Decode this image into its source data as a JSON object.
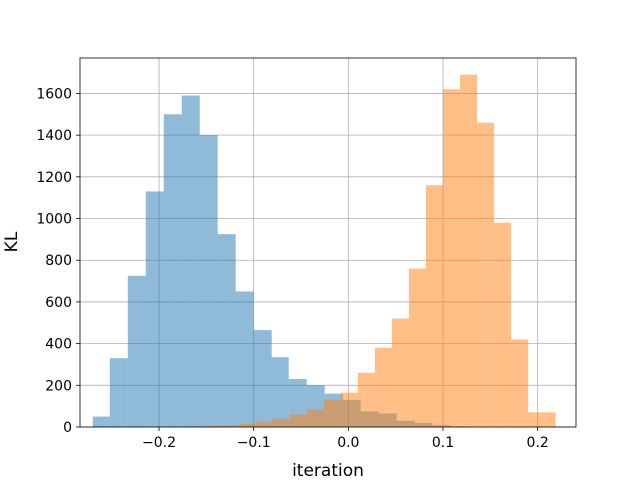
{
  "chart_data": {
    "type": "histogram",
    "title": "",
    "xlabel": "iteration",
    "ylabel": "KL",
    "xlim": [
      -0.2835,
      0.2405
    ],
    "ylim": [
      0,
      1770
    ],
    "x_ticks": [
      -0.2,
      -0.1,
      0.0,
      0.1,
      0.2
    ],
    "x_tick_labels": [
      "−0.2",
      "−0.1",
      "0.0",
      "0.1",
      "0.2"
    ],
    "y_ticks": [
      0,
      200,
      400,
      600,
      800,
      1000,
      1200,
      1400,
      1600
    ],
    "y_tick_labels": [
      "0",
      "200",
      "400",
      "600",
      "800",
      "1000",
      "1200",
      "1400",
      "1600"
    ],
    "grid": true,
    "legend": "none",
    "series": [
      {
        "color": "#1f77b4",
        "alpha": 0.5,
        "bins": [
          {
            "x0": -0.27,
            "x1": -0.252,
            "count": 50
          },
          {
            "x0": -0.252,
            "x1": -0.233,
            "count": 330
          },
          {
            "x0": -0.233,
            "x1": -0.214,
            "count": 725
          },
          {
            "x0": -0.214,
            "x1": -0.195,
            "count": 1130
          },
          {
            "x0": -0.195,
            "x1": -0.176,
            "count": 1500
          },
          {
            "x0": -0.176,
            "x1": -0.157,
            "count": 1590
          },
          {
            "x0": -0.157,
            "x1": -0.138,
            "count": 1400
          },
          {
            "x0": -0.138,
            "x1": -0.119,
            "count": 925
          },
          {
            "x0": -0.119,
            "x1": -0.1,
            "count": 650
          },
          {
            "x0": -0.1,
            "x1": -0.081,
            "count": 465
          },
          {
            "x0": -0.081,
            "x1": -0.063,
            "count": 335
          },
          {
            "x0": -0.063,
            "x1": -0.044,
            "count": 230
          },
          {
            "x0": -0.044,
            "x1": -0.025,
            "count": 200
          },
          {
            "x0": -0.025,
            "x1": -0.006,
            "count": 160
          },
          {
            "x0": -0.006,
            "x1": 0.013,
            "count": 130
          },
          {
            "x0": 0.013,
            "x1": 0.032,
            "count": 75
          },
          {
            "x0": 0.032,
            "x1": 0.051,
            "count": 65
          },
          {
            "x0": 0.051,
            "x1": 0.07,
            "count": 30
          },
          {
            "x0": 0.07,
            "x1": 0.089,
            "count": 20
          },
          {
            "x0": 0.089,
            "x1": 0.108,
            "count": 8
          },
          {
            "x0": 0.108,
            "x1": 0.127,
            "count": 3
          }
        ]
      },
      {
        "color": "#ff7f0e",
        "alpha": 0.5,
        "bins": [
          {
            "x0": -0.17,
            "x1": -0.152,
            "count": 2
          },
          {
            "x0": -0.152,
            "x1": -0.134,
            "count": 5
          },
          {
            "x0": -0.134,
            "x1": -0.116,
            "count": 8
          },
          {
            "x0": -0.116,
            "x1": -0.098,
            "count": 15
          },
          {
            "x0": -0.098,
            "x1": -0.08,
            "count": 25
          },
          {
            "x0": -0.08,
            "x1": -0.062,
            "count": 40
          },
          {
            "x0": -0.062,
            "x1": -0.044,
            "count": 60
          },
          {
            "x0": -0.044,
            "x1": -0.026,
            "count": 85
          },
          {
            "x0": -0.026,
            "x1": -0.008,
            "count": 130
          },
          {
            "x0": -0.008,
            "x1": 0.01,
            "count": 165
          },
          {
            "x0": 0.01,
            "x1": 0.028,
            "count": 260
          },
          {
            "x0": 0.028,
            "x1": 0.046,
            "count": 380
          },
          {
            "x0": 0.046,
            "x1": 0.064,
            "count": 520
          },
          {
            "x0": 0.064,
            "x1": 0.082,
            "count": 760
          },
          {
            "x0": 0.082,
            "x1": 0.1,
            "count": 1160
          },
          {
            "x0": 0.1,
            "x1": 0.118,
            "count": 1620
          },
          {
            "x0": 0.118,
            "x1": 0.136,
            "count": 1690
          },
          {
            "x0": 0.136,
            "x1": 0.154,
            "count": 1460
          },
          {
            "x0": 0.154,
            "x1": 0.172,
            "count": 980
          },
          {
            "x0": 0.172,
            "x1": 0.19,
            "count": 420
          },
          {
            "x0": 0.19,
            "x1": 0.219,
            "count": 70
          }
        ]
      }
    ]
  }
}
